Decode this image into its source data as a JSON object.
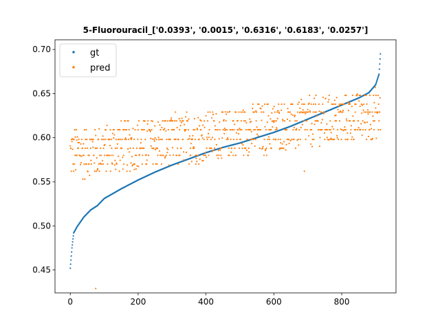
{
  "chart_data": {
    "type": "scatter",
    "title": "5-Fluorouracil_['0.0393', '0.0015', '0.6316', '0.6183', '0.0257']",
    "xlabel": "",
    "ylabel": "",
    "xlim": [
      -45,
      960
    ],
    "ylim": [
      0.424,
      0.711
    ],
    "xticks": [
      0,
      200,
      400,
      600,
      800
    ],
    "yticks": [
      0.45,
      0.5,
      0.55,
      0.6,
      0.65,
      0.7
    ],
    "ytick_labels": [
      "0.45",
      "0.50",
      "0.55",
      "0.60",
      "0.65",
      "0.70"
    ],
    "grid": false,
    "legend_position": "top-left",
    "n_points": 915,
    "series": [
      {
        "name": "gt",
        "color": "#1f77b4",
        "description_curve": [
          [
            0,
            0.452
          ],
          [
            5,
            0.475
          ],
          [
            10,
            0.492
          ],
          [
            20,
            0.499
          ],
          [
            40,
            0.51
          ],
          [
            60,
            0.518
          ],
          [
            80,
            0.523
          ],
          [
            100,
            0.531
          ],
          [
            150,
            0.542
          ],
          [
            200,
            0.552
          ],
          [
            250,
            0.561
          ],
          [
            300,
            0.569
          ],
          [
            350,
            0.576
          ],
          [
            400,
            0.583
          ],
          [
            450,
            0.589
          ],
          [
            500,
            0.594
          ],
          [
            550,
            0.6
          ],
          [
            600,
            0.606
          ],
          [
            650,
            0.613
          ],
          [
            700,
            0.621
          ],
          [
            750,
            0.629
          ],
          [
            800,
            0.637
          ],
          [
            850,
            0.645
          ],
          [
            880,
            0.651
          ],
          [
            900,
            0.66
          ],
          [
            910,
            0.672
          ],
          [
            914,
            0.695
          ]
        ]
      },
      {
        "name": "pred",
        "color": "#ff7f0e",
        "levels": [
          0.541,
          0.553,
          0.562,
          0.57,
          0.58,
          0.588,
          0.598,
          0.609,
          0.619,
          0.629,
          0.638,
          0.648,
          0.657
        ],
        "outliers": [
          [
            75,
            0.429
          ],
          [
            690,
            0.562
          ]
        ]
      }
    ]
  }
}
